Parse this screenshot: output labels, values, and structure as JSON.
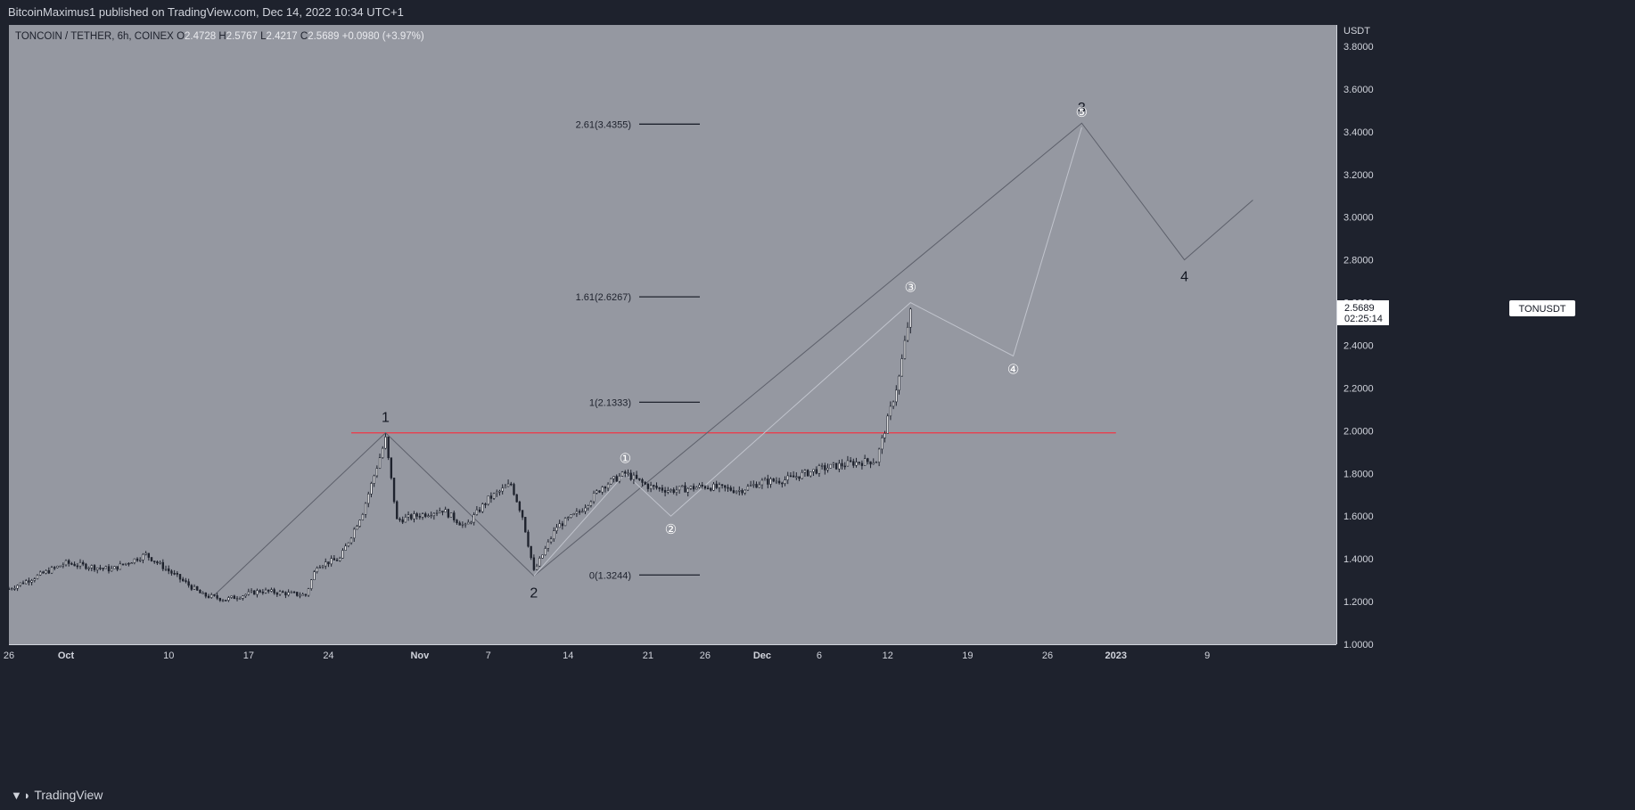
{
  "header": {
    "publisher_line": "BitcoinMaximus1 published on TradingView.com, Dec 14, 2022 10:34 UTC+1"
  },
  "legend": {
    "symbol": "TONCOIN / TETHER, 6h, COINEX",
    "o_label": "O",
    "o_value": "2.4728",
    "h_label": "H",
    "h_value": "2.5767",
    "l_label": "L",
    "l_value": "2.4217",
    "c_label": "C",
    "c_value": "2.5689",
    "change": "+0.0980 (+3.97%)"
  },
  "price_scale": {
    "currency": "USDT",
    "ticks": [
      "3.8000",
      "3.6000",
      "3.4000",
      "3.2000",
      "3.0000",
      "2.8000",
      "2.6000",
      "2.4000",
      "2.2000",
      "2.0000",
      "1.8000",
      "1.6000",
      "1.4000",
      "1.2000",
      "1.0000"
    ]
  },
  "last_price": {
    "ticker": "TONUSDT",
    "price": "2.5689",
    "countdown": "02:25:14"
  },
  "time_axis": {
    "labels": [
      "26",
      "Oct",
      "10",
      "17",
      "24",
      "Nov",
      "7",
      "14",
      "21",
      "26",
      "Dec",
      "6",
      "12",
      "19",
      "26",
      "2023",
      "9"
    ]
  },
  "footer": {
    "brand": "TradingView"
  },
  "colors": {
    "chart_bg": "#9598a1",
    "candle": "#1e222d",
    "resistance_line": "#f23645",
    "wave_line": "#5d606b",
    "subwave_line": "#c1c4cd",
    "fib_line": "#1e222d",
    "page_bg": "#1e222d"
  },
  "chart_data": {
    "type": "candlestick",
    "title": "TONCOIN / TETHER, 6h, COINEX",
    "ylabel": "USDT",
    "ylim": [
      1.0,
      3.9
    ],
    "x_dates": [
      "2022-09-26",
      "2022-10-01",
      "2022-10-10",
      "2022-10-17",
      "2022-10-24",
      "2022-11-01",
      "2022-11-07",
      "2022-11-14",
      "2022-11-21",
      "2022-11-26",
      "2022-12-01",
      "2022-12-06",
      "2022-12-12",
      "2022-12-19",
      "2022-12-26",
      "2023-01-01",
      "2023-01-09"
    ],
    "price_path": [
      {
        "date": "2022-09-26",
        "price": 1.26
      },
      {
        "date": "2022-10-01",
        "price": 1.38
      },
      {
        "date": "2022-10-05",
        "price": 1.35
      },
      {
        "date": "2022-10-08",
        "price": 1.42
      },
      {
        "date": "2022-10-13",
        "price": 1.23
      },
      {
        "date": "2022-10-15",
        "price": 1.21
      },
      {
        "date": "2022-10-18",
        "price": 1.25
      },
      {
        "date": "2022-10-22",
        "price": 1.23
      },
      {
        "date": "2022-10-23",
        "price": 1.37
      },
      {
        "date": "2022-10-25",
        "price": 1.4
      },
      {
        "date": "2022-10-27",
        "price": 1.62
      },
      {
        "date": "2022-10-29",
        "price": 1.96
      },
      {
        "date": "2022-10-30",
        "price": 1.58
      },
      {
        "date": "2022-11-03",
        "price": 1.63
      },
      {
        "date": "2022-11-05",
        "price": 1.55
      },
      {
        "date": "2022-11-07",
        "price": 1.68
      },
      {
        "date": "2022-11-09",
        "price": 1.75
      },
      {
        "date": "2022-11-10",
        "price": 1.6
      },
      {
        "date": "2022-11-11",
        "price": 1.34
      },
      {
        "date": "2022-11-13",
        "price": 1.55
      },
      {
        "date": "2022-11-15",
        "price": 1.62
      },
      {
        "date": "2022-11-17",
        "price": 1.74
      },
      {
        "date": "2022-11-19",
        "price": 1.8
      },
      {
        "date": "2022-11-21",
        "price": 1.74
      },
      {
        "date": "2022-11-23",
        "price": 1.72
      },
      {
        "date": "2022-11-26",
        "price": 1.74
      },
      {
        "date": "2022-11-29",
        "price": 1.72
      },
      {
        "date": "2022-12-01",
        "price": 1.76
      },
      {
        "date": "2022-12-03",
        "price": 1.77
      },
      {
        "date": "2022-12-06",
        "price": 1.82
      },
      {
        "date": "2022-12-09",
        "price": 1.85
      },
      {
        "date": "2022-12-11",
        "price": 1.86
      },
      {
        "date": "2022-12-12",
        "price": 2.05
      },
      {
        "date": "2022-12-13",
        "price": 2.25
      },
      {
        "date": "2022-12-14",
        "price": 2.57
      }
    ],
    "resistance": {
      "price": 1.99,
      "from": "2022-10-26",
      "to": "2023-01-01"
    },
    "fib_levels": [
      {
        "label": "0(1.3244)",
        "value": 1.3244
      },
      {
        "label": "1(2.1333)",
        "value": 2.1333
      },
      {
        "label": "1.61(2.6267)",
        "value": 2.6267
      },
      {
        "label": "2.61(3.4355)",
        "value": 3.4355
      }
    ],
    "wave_count": [
      {
        "label": "1",
        "date": "2022-10-29",
        "price": 1.99
      },
      {
        "label": "2",
        "date": "2022-11-11",
        "price": 1.32
      },
      {
        "label": "3",
        "date": "2022-12-29",
        "price": 3.44
      },
      {
        "label": "4",
        "date": "2023-01-07",
        "price": 2.8
      }
    ],
    "wave_path": [
      {
        "date": "2022-10-14",
        "price": 1.23
      },
      {
        "date": "2022-10-29",
        "price": 1.99
      },
      {
        "date": "2022-11-11",
        "price": 1.32
      },
      {
        "date": "2022-12-29",
        "price": 3.44
      },
      {
        "date": "2023-01-07",
        "price": 2.8
      },
      {
        "date": "2023-01-13",
        "price": 3.08
      }
    ],
    "subwave_count": [
      {
        "label": "①",
        "date": "2022-11-19",
        "price": 1.8
      },
      {
        "label": "②",
        "date": "2022-11-23",
        "price": 1.6
      },
      {
        "label": "③",
        "date": "2022-12-14",
        "price": 2.6
      },
      {
        "label": "④",
        "date": "2022-12-23",
        "price": 2.35
      },
      {
        "label": "⑤",
        "date": "2022-12-29",
        "price": 3.42
      }
    ],
    "subwave_path": [
      {
        "date": "2022-11-11",
        "price": 1.32
      },
      {
        "date": "2022-11-19",
        "price": 1.8
      },
      {
        "date": "2022-11-23",
        "price": 1.6
      },
      {
        "date": "2022-12-14",
        "price": 2.6
      },
      {
        "date": "2022-12-23",
        "price": 2.35
      },
      {
        "date": "2022-12-29",
        "price": 3.42
      }
    ]
  }
}
